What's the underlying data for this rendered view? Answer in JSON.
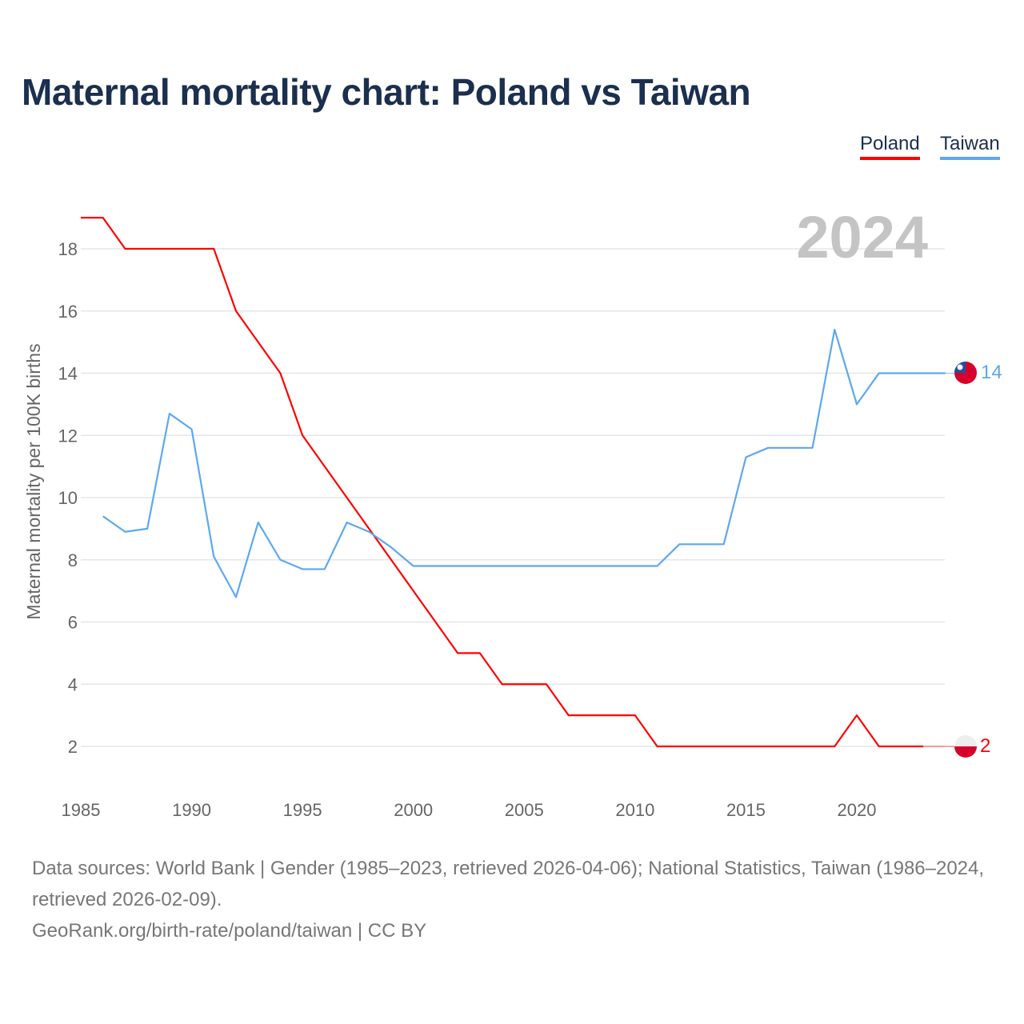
{
  "title": "Maternal mortality chart: Poland vs Taiwan",
  "legend": {
    "poland": "Poland",
    "taiwan": "Taiwan"
  },
  "source_line1": "Data sources: World Bank | Gender (1985–2023, retrieved 2026-04-06); National Statistics, Taiwan (1986–2024, retrieved 2026-02-09).",
  "source_line2": "GeoRank.org/birth-rate/poland/taiwan | CC BY",
  "colors": {
    "poland": "#ff0000",
    "taiwan": "#5da8f0",
    "grid": "#e6e6e6"
  },
  "chart_data": {
    "type": "line",
    "title": "Maternal mortality chart: Poland vs Taiwan",
    "ylabel": "Maternal mortality per 100K births",
    "xlabel": "",
    "year_label": "2024",
    "xlim": [
      1985,
      2024
    ],
    "ylim": [
      0,
      19.5
    ],
    "xticks": [
      1985,
      1990,
      1995,
      2000,
      2005,
      2010,
      2015,
      2020
    ],
    "yticks": [
      2,
      4,
      6,
      8,
      10,
      12,
      14,
      16,
      18
    ],
    "grid": true,
    "legend_position": "top-right",
    "series": [
      {
        "name": "Poland",
        "color": "#ff0000",
        "end_label": "2",
        "flag": "poland-flag",
        "x": [
          1985,
          1986,
          1987,
          1988,
          1989,
          1990,
          1991,
          1992,
          1993,
          1994,
          1995,
          1996,
          1997,
          1998,
          1999,
          2000,
          2001,
          2002,
          2003,
          2004,
          2005,
          2006,
          2007,
          2008,
          2009,
          2010,
          2011,
          2012,
          2013,
          2014,
          2015,
          2016,
          2017,
          2018,
          2019,
          2020,
          2021,
          2022,
          2023
        ],
        "y": [
          19,
          19,
          18,
          18,
          18,
          18,
          18,
          16,
          15,
          14,
          12,
          11,
          10,
          9,
          8,
          7,
          6,
          5,
          5,
          4,
          4,
          4,
          3,
          3,
          3,
          3,
          2,
          2,
          2,
          2,
          2,
          2,
          2,
          2,
          2,
          3,
          2,
          2,
          2
        ]
      },
      {
        "name": "Taiwan",
        "color": "#5da8f0",
        "end_label": "14",
        "flag": "taiwan-flag",
        "x": [
          1986,
          1987,
          1988,
          1989,
          1990,
          1991,
          1992,
          1993,
          1994,
          1995,
          1996,
          1997,
          1998,
          1999,
          2000,
          2001,
          2002,
          2003,
          2004,
          2005,
          2006,
          2007,
          2008,
          2009,
          2010,
          2011,
          2012,
          2013,
          2014,
          2015,
          2016,
          2017,
          2018,
          2019,
          2020,
          2021,
          2022,
          2023,
          2024
        ],
        "y": [
          9.4,
          8.9,
          9.0,
          12.7,
          12.2,
          8.1,
          6.8,
          9.2,
          8.0,
          7.7,
          7.7,
          9.2,
          8.9,
          8.4,
          7.8,
          7.8,
          7.8,
          7.8,
          7.8,
          7.8,
          7.8,
          7.8,
          7.8,
          7.8,
          7.8,
          7.8,
          8.5,
          8.5,
          8.5,
          11.3,
          11.6,
          11.6,
          11.6,
          15.4,
          13.0,
          14,
          14,
          14,
          14
        ]
      }
    ]
  }
}
